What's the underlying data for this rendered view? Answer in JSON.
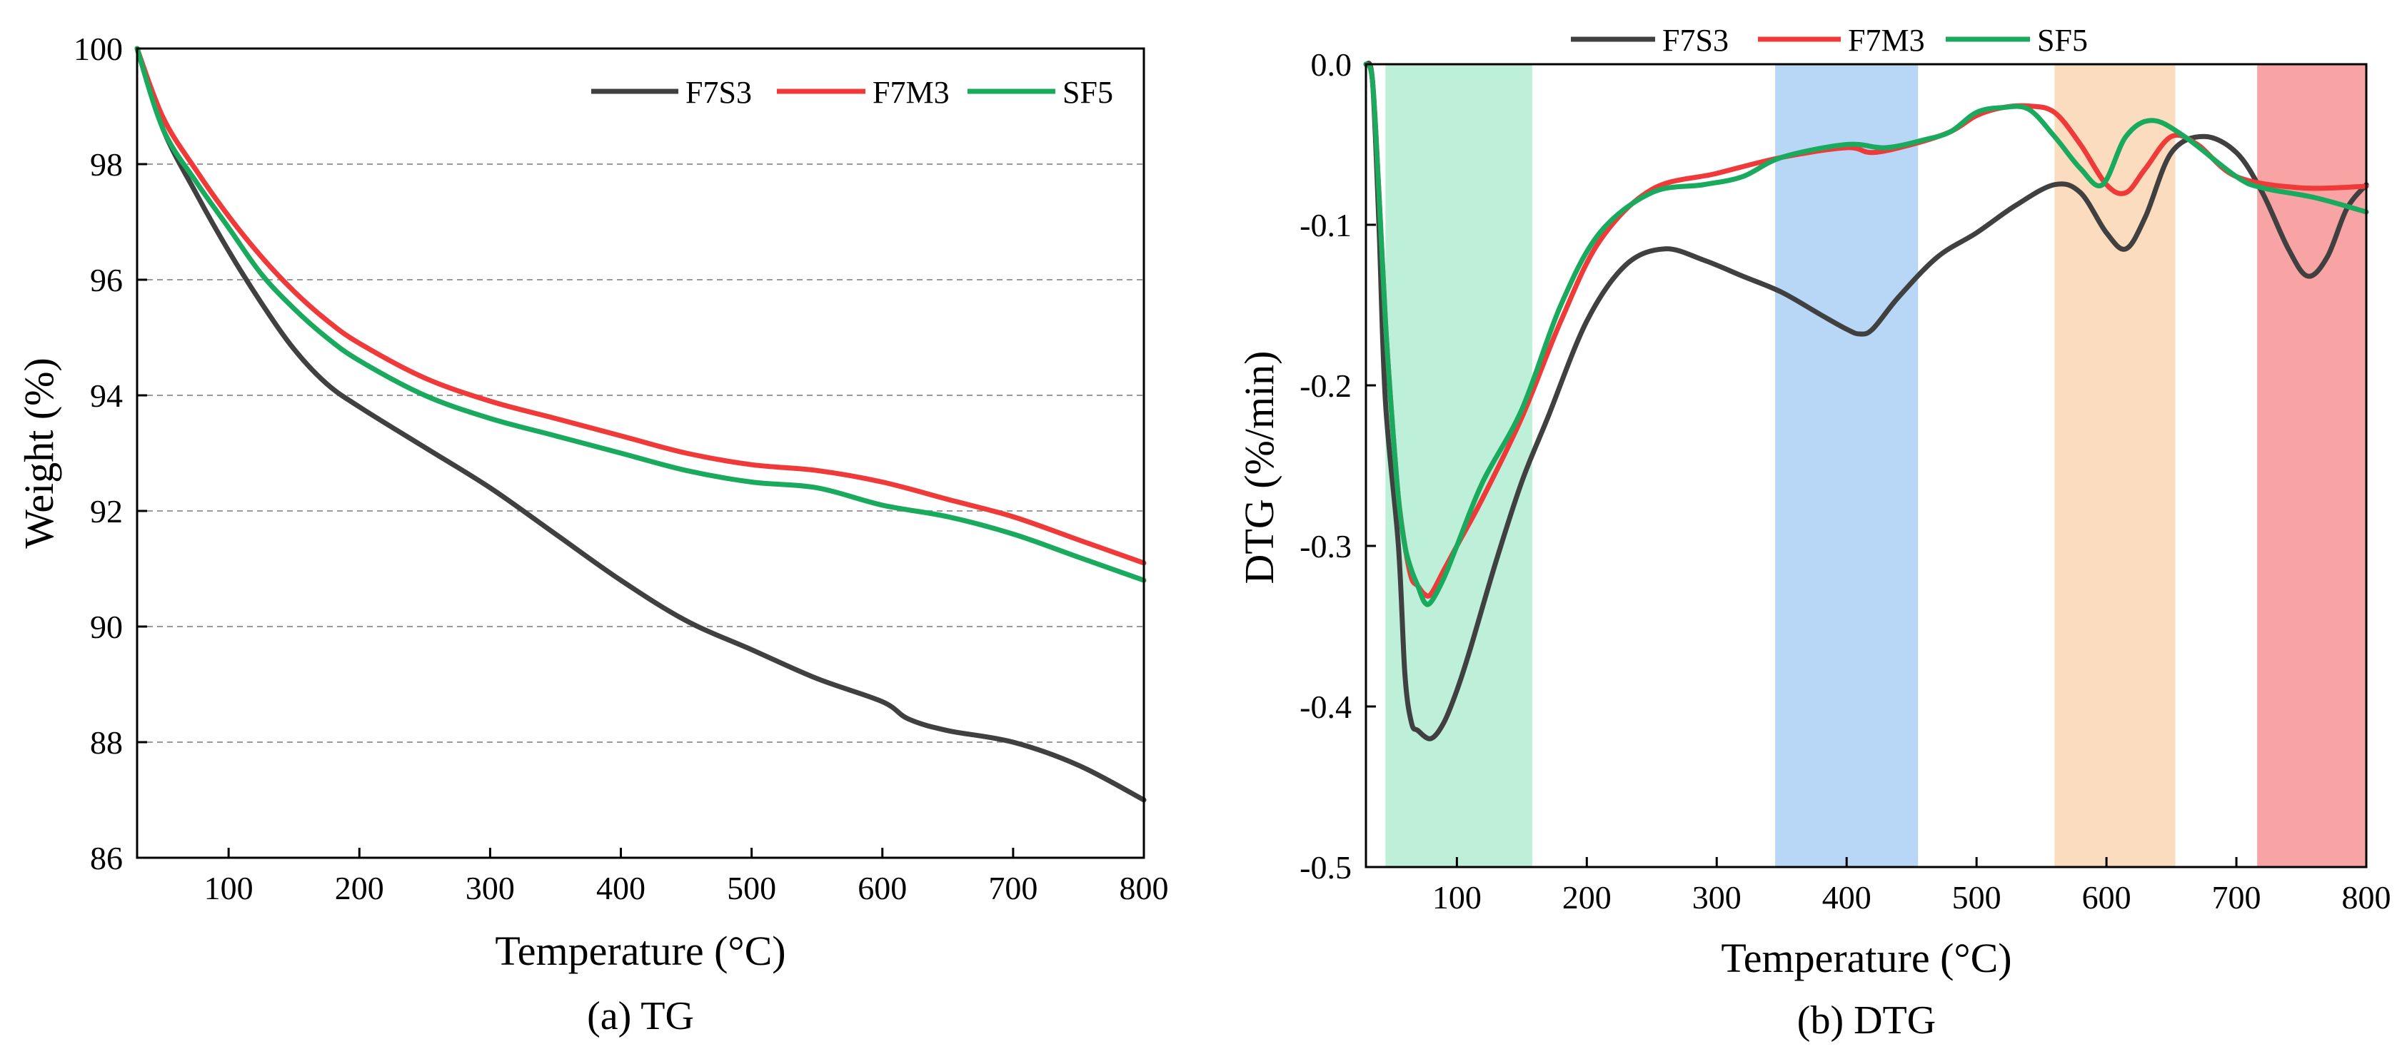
{
  "chart_data": [
    {
      "id": "tg",
      "type": "line",
      "caption": "(a) TG",
      "xlabel": "Temperature (°C)",
      "ylabel": "Weight (%)",
      "xlim": [
        30,
        800
      ],
      "ylim": [
        86,
        100
      ],
      "xticks": [
        100,
        200,
        300,
        400,
        500,
        600,
        700,
        800
      ],
      "yticks": [
        86,
        88,
        90,
        92,
        94,
        96,
        98,
        100
      ],
      "xtick_labels": [
        "100",
        "200",
        "300",
        "400",
        "500",
        "600",
        "700",
        "800"
      ],
      "ytick_labels": [
        "86",
        "88",
        "90",
        "92",
        "94",
        "96",
        "98",
        "100"
      ],
      "grid": "horizontal-dashed",
      "legend": "top-right",
      "series": [
        {
          "name": "F7S3",
          "color": "#404040",
          "x": [
            30,
            50,
            75,
            100,
            125,
            150,
            175,
            200,
            250,
            300,
            350,
            400,
            450,
            500,
            550,
            600,
            620,
            650,
            700,
            750,
            800
          ],
          "y": [
            100,
            98.6,
            97.5,
            96.5,
            95.6,
            94.8,
            94.2,
            93.8,
            93.1,
            92.4,
            91.6,
            90.8,
            90.1,
            89.6,
            89.1,
            88.7,
            88.4,
            88.2,
            88.0,
            87.6,
            87.0
          ]
        },
        {
          "name": "F7M3",
          "color": "#F03A3A",
          "x": [
            30,
            50,
            75,
            100,
            125,
            150,
            175,
            200,
            250,
            300,
            350,
            400,
            450,
            500,
            550,
            600,
            650,
            700,
            750,
            800
          ],
          "y": [
            100,
            98.8,
            97.9,
            97.1,
            96.4,
            95.8,
            95.3,
            94.9,
            94.3,
            93.9,
            93.6,
            93.3,
            93.0,
            92.8,
            92.7,
            92.5,
            92.2,
            91.9,
            91.5,
            91.1
          ]
        },
        {
          "name": "SF5",
          "color": "#1AAA5E",
          "x": [
            30,
            50,
            75,
            100,
            125,
            150,
            175,
            200,
            250,
            300,
            350,
            400,
            450,
            500,
            550,
            600,
            650,
            700,
            750,
            800
          ],
          "y": [
            100,
            98.6,
            97.7,
            96.9,
            96.1,
            95.5,
            95.0,
            94.6,
            94.0,
            93.6,
            93.3,
            93.0,
            92.7,
            92.5,
            92.4,
            92.1,
            91.9,
            91.6,
            91.2,
            90.8
          ]
        }
      ]
    },
    {
      "id": "dtg",
      "type": "line",
      "caption": "(b) DTG",
      "xlabel": "Temperature (°C)",
      "ylabel": "DTG (%/min)",
      "xlim": [
        30,
        800
      ],
      "ylim": [
        -0.5,
        0.0
      ],
      "xticks": [
        100,
        200,
        300,
        400,
        500,
        600,
        700,
        800
      ],
      "yticks": [
        0.0,
        -0.1,
        -0.2,
        -0.3,
        -0.4,
        -0.5
      ],
      "xtick_labels": [
        "100",
        "200",
        "300",
        "400",
        "500",
        "600",
        "700",
        "800"
      ],
      "ytick_labels": [
        "0.0",
        "-0.1",
        "-0.2",
        "-0.3",
        "-0.4",
        "-0.5"
      ],
      "legend": "top-center-outside",
      "shaded_regions": [
        {
          "from": 45,
          "to": 158,
          "color": "#BEEFD9"
        },
        {
          "from": 345,
          "to": 455,
          "color": "#B8D6F5"
        },
        {
          "from": 560,
          "to": 653,
          "color": "#FBDCBE"
        },
        {
          "from": 716,
          "to": 800,
          "color": "#F8A4A4"
        }
      ],
      "series": [
        {
          "name": "F7S3",
          "color": "#404040",
          "x": [
            30,
            35,
            40,
            45,
            55,
            60,
            65,
            70,
            80,
            90,
            100,
            110,
            130,
            150,
            170,
            200,
            230,
            260,
            290,
            320,
            350,
            380,
            400,
            410,
            420,
            440,
            470,
            500,
            530,
            560,
            580,
            600,
            615,
            630,
            650,
            675,
            700,
            720,
            740,
            755,
            770,
            785,
            800
          ],
          "y": [
            0.0,
            -0.01,
            -0.1,
            -0.21,
            -0.3,
            -0.38,
            -0.41,
            -0.415,
            -0.42,
            -0.41,
            -0.39,
            -0.365,
            -0.31,
            -0.26,
            -0.22,
            -0.16,
            -0.125,
            -0.115,
            -0.122,
            -0.132,
            -0.142,
            -0.156,
            -0.165,
            -0.168,
            -0.165,
            -0.145,
            -0.12,
            -0.105,
            -0.088,
            -0.075,
            -0.08,
            -0.105,
            -0.115,
            -0.095,
            -0.055,
            -0.045,
            -0.055,
            -0.08,
            -0.115,
            -0.132,
            -0.12,
            -0.09,
            -0.075
          ]
        },
        {
          "name": "F7M3",
          "color": "#F03A3A",
          "x": [
            30,
            35,
            40,
            45,
            50,
            55,
            60,
            65,
            70,
            75,
            80,
            90,
            100,
            120,
            150,
            180,
            210,
            250,
            300,
            350,
            400,
            420,
            450,
            480,
            500,
            520,
            540,
            560,
            580,
            600,
            615,
            630,
            650,
            670,
            700,
            750,
            800
          ],
          "y": [
            0.0,
            -0.01,
            -0.08,
            -0.16,
            -0.22,
            -0.27,
            -0.3,
            -0.32,
            -0.325,
            -0.33,
            -0.33,
            -0.315,
            -0.3,
            -0.27,
            -0.22,
            -0.16,
            -0.11,
            -0.078,
            -0.068,
            -0.058,
            -0.052,
            -0.055,
            -0.05,
            -0.042,
            -0.032,
            -0.027,
            -0.026,
            -0.03,
            -0.05,
            -0.075,
            -0.08,
            -0.065,
            -0.045,
            -0.05,
            -0.07,
            -0.077,
            -0.076
          ]
        },
        {
          "name": "SF5",
          "color": "#1AAA5E",
          "x": [
            30,
            35,
            40,
            45,
            50,
            55,
            60,
            65,
            70,
            75,
            80,
            90,
            100,
            120,
            150,
            180,
            210,
            250,
            290,
            320,
            350,
            400,
            430,
            460,
            480,
            500,
            520,
            540,
            560,
            580,
            597,
            615,
            635,
            660,
            700,
            720,
            760,
            800
          ],
          "y": [
            0.0,
            -0.01,
            -0.08,
            -0.16,
            -0.22,
            -0.27,
            -0.3,
            -0.315,
            -0.325,
            -0.335,
            -0.335,
            -0.32,
            -0.3,
            -0.26,
            -0.215,
            -0.15,
            -0.105,
            -0.08,
            -0.075,
            -0.07,
            -0.058,
            -0.05,
            -0.052,
            -0.047,
            -0.042,
            -0.03,
            -0.027,
            -0.028,
            -0.045,
            -0.065,
            -0.075,
            -0.045,
            -0.035,
            -0.045,
            -0.07,
            -0.077,
            -0.083,
            -0.092
          ]
        }
      ]
    }
  ]
}
